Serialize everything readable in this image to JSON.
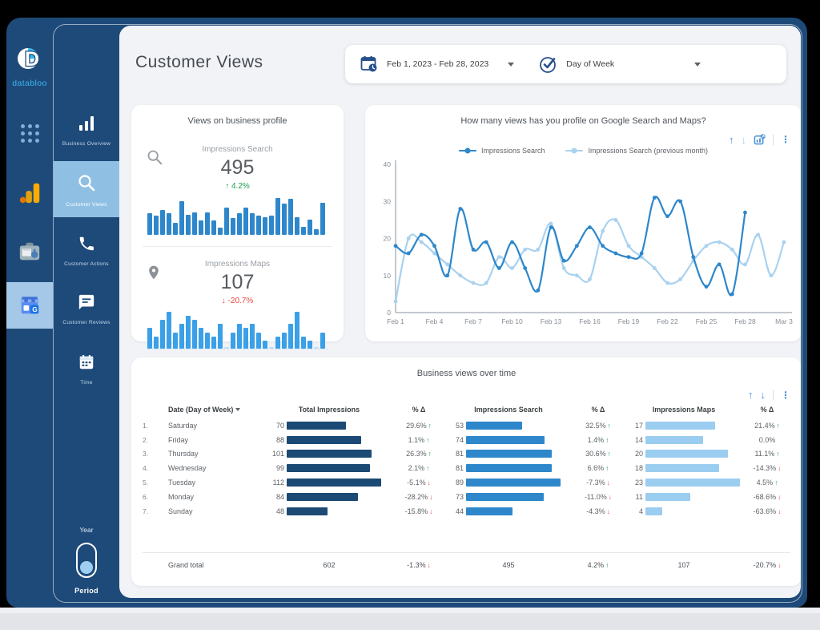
{
  "brand": {
    "name": "databloo"
  },
  "icons": {
    "up_arrow": "↑",
    "down_arrow": "↓",
    "kebab": "⋮"
  },
  "left_rail": {
    "items": [
      {
        "icon": "apps-grid-icon"
      },
      {
        "icon": "google-analytics-icon"
      },
      {
        "icon": "search-console-toolbox-icon"
      },
      {
        "icon": "google-business-profile-icon",
        "active": true
      }
    ]
  },
  "nav": {
    "items": [
      {
        "label": "Business Overview",
        "icon": "bar-chart-icon",
        "active": false
      },
      {
        "label": "Customer Views",
        "icon": "search-icon",
        "active": true
      },
      {
        "label": "Customer Actions",
        "icon": "phone-icon",
        "active": false
      },
      {
        "label": "Customer Reviews",
        "icon": "chat-icon",
        "active": false
      },
      {
        "label": "Time",
        "icon": "calendar-icon",
        "active": false
      }
    ],
    "toggle": {
      "top_label": "Year",
      "bottom_label": "Period",
      "state": "bottom"
    }
  },
  "header": {
    "title": "Customer Views",
    "date_range": "Feb 1, 2023 - Feb 28, 2023",
    "dimension": "Day of Week"
  },
  "scorecards": {
    "title": "Views on business profile",
    "metrics": [
      {
        "icon": "magnifier-icon",
        "label": "Impressions Search",
        "value": "495",
        "arrow": "↑",
        "delta": "4.2%",
        "dir": "up",
        "spark": [
          18,
          16,
          21,
          18,
          10,
          28,
          17,
          19,
          12,
          19,
          12,
          6,
          23,
          14,
          18,
          23,
          18,
          16,
          15,
          16,
          31,
          26,
          30,
          15,
          7,
          13,
          5,
          27
        ]
      },
      {
        "icon": "location-pin-icon",
        "label": "Impressions Maps",
        "value": "107",
        "arrow": "↓",
        "delta": "-20.7%",
        "dir": "down",
        "spark": [
          5,
          3,
          7,
          9,
          4,
          6,
          8,
          7,
          5,
          4,
          3,
          6,
          0,
          4,
          6,
          5,
          6,
          4,
          2,
          0,
          3,
          4,
          6,
          9,
          3,
          2,
          0,
          4
        ]
      }
    ]
  },
  "chart_data": {
    "type": "line",
    "title": "How many views has you profile on Google Search and Maps?",
    "xlabel": "",
    "ylabel": "",
    "ylim": [
      0,
      40
    ],
    "yticks": [
      0,
      10,
      20,
      30,
      40
    ],
    "grid": false,
    "legend_position": "top",
    "x_days": 31,
    "x_labels": [
      "Feb 1",
      "Feb 4",
      "Feb 7",
      "Feb 10",
      "Feb 13",
      "Feb 16",
      "Feb 19",
      "Feb 22",
      "Feb 25",
      "Feb 28",
      "Mar 3"
    ],
    "x_label_days": [
      1,
      4,
      7,
      10,
      13,
      16,
      19,
      22,
      25,
      28,
      31
    ],
    "series": [
      {
        "name": "Impressions Search",
        "color": "#2e87ca",
        "values": [
          18,
          16,
          21,
          18,
          10,
          28,
          17,
          19,
          12,
          19,
          12,
          6,
          23,
          14,
          18,
          23,
          18,
          16,
          15,
          16,
          31,
          26,
          30,
          15,
          7,
          13,
          5,
          27
        ]
      },
      {
        "name": "Impressions Search (previous month)",
        "color": "#a9d2ef",
        "values": [
          3,
          20,
          19,
          16,
          13,
          10,
          8,
          8,
          15,
          12,
          17,
          17,
          24,
          12,
          10,
          9,
          22,
          25,
          18,
          15,
          12,
          8,
          9,
          14,
          18,
          19,
          17,
          13,
          21,
          10,
          19
        ]
      }
    ]
  },
  "table": {
    "title": "Business views over time",
    "columns": [
      "Date (Day of Week)",
      "Total Impressions",
      "% Δ",
      "Impressions Search",
      "% Δ",
      "Impressions Maps",
      "% Δ"
    ],
    "bar_colors": {
      "total": "#1b4a75",
      "search": "#2e87ca",
      "maps": "#9bcdf0"
    },
    "max": {
      "total": 112,
      "search": 89,
      "maps": 23
    },
    "rows": [
      {
        "rank": "1.",
        "day": "Saturday",
        "total": 70,
        "total_delta": "29.6%",
        "total_dir": "up",
        "search": 53,
        "search_delta": "32.5%",
        "search_dir": "up",
        "maps": 17,
        "maps_delta": "21.4%",
        "maps_dir": "up"
      },
      {
        "rank": "2.",
        "day": "Friday",
        "total": 88,
        "total_delta": "1.1%",
        "total_dir": "up",
        "search": 74,
        "search_delta": "1.4%",
        "search_dir": "up",
        "maps": 14,
        "maps_delta": "0.0%",
        "maps_dir": "none"
      },
      {
        "rank": "3.",
        "day": "Thursday",
        "total": 101,
        "total_delta": "26.3%",
        "total_dir": "up",
        "search": 81,
        "search_delta": "30.6%",
        "search_dir": "up",
        "maps": 20,
        "maps_delta": "11.1%",
        "maps_dir": "up"
      },
      {
        "rank": "4.",
        "day": "Wednesday",
        "total": 99,
        "total_delta": "2.1%",
        "total_dir": "up",
        "search": 81,
        "search_delta": "6.6%",
        "search_dir": "up",
        "maps": 18,
        "maps_delta": "-14.3%",
        "maps_dir": "down"
      },
      {
        "rank": "5.",
        "day": "Tuesday",
        "total": 112,
        "total_delta": "-5.1%",
        "total_dir": "down",
        "search": 89,
        "search_delta": "-7.3%",
        "search_dir": "down",
        "maps": 23,
        "maps_delta": "4.5%",
        "maps_dir": "up"
      },
      {
        "rank": "6.",
        "day": "Monday",
        "total": 84,
        "total_delta": "-28.2%",
        "total_dir": "down",
        "search": 73,
        "search_delta": "-11.0%",
        "search_dir": "down",
        "maps": 11,
        "maps_delta": "-68.6%",
        "maps_dir": "down"
      },
      {
        "rank": "7.",
        "day": "Sunday",
        "total": 48,
        "total_delta": "-15.8%",
        "total_dir": "down",
        "search": 44,
        "search_delta": "-4.3%",
        "search_dir": "down",
        "maps": 4,
        "maps_delta": "-63.6%",
        "maps_dir": "down"
      }
    ],
    "grand_total": {
      "label": "Grand total",
      "total": "602",
      "total_delta": "-1.3%",
      "total_dir": "down",
      "search": "495",
      "search_delta": "4.2%",
      "search_dir": "up",
      "maps": "107",
      "maps_delta": "-20.7%",
      "maps_dir": "down"
    }
  }
}
